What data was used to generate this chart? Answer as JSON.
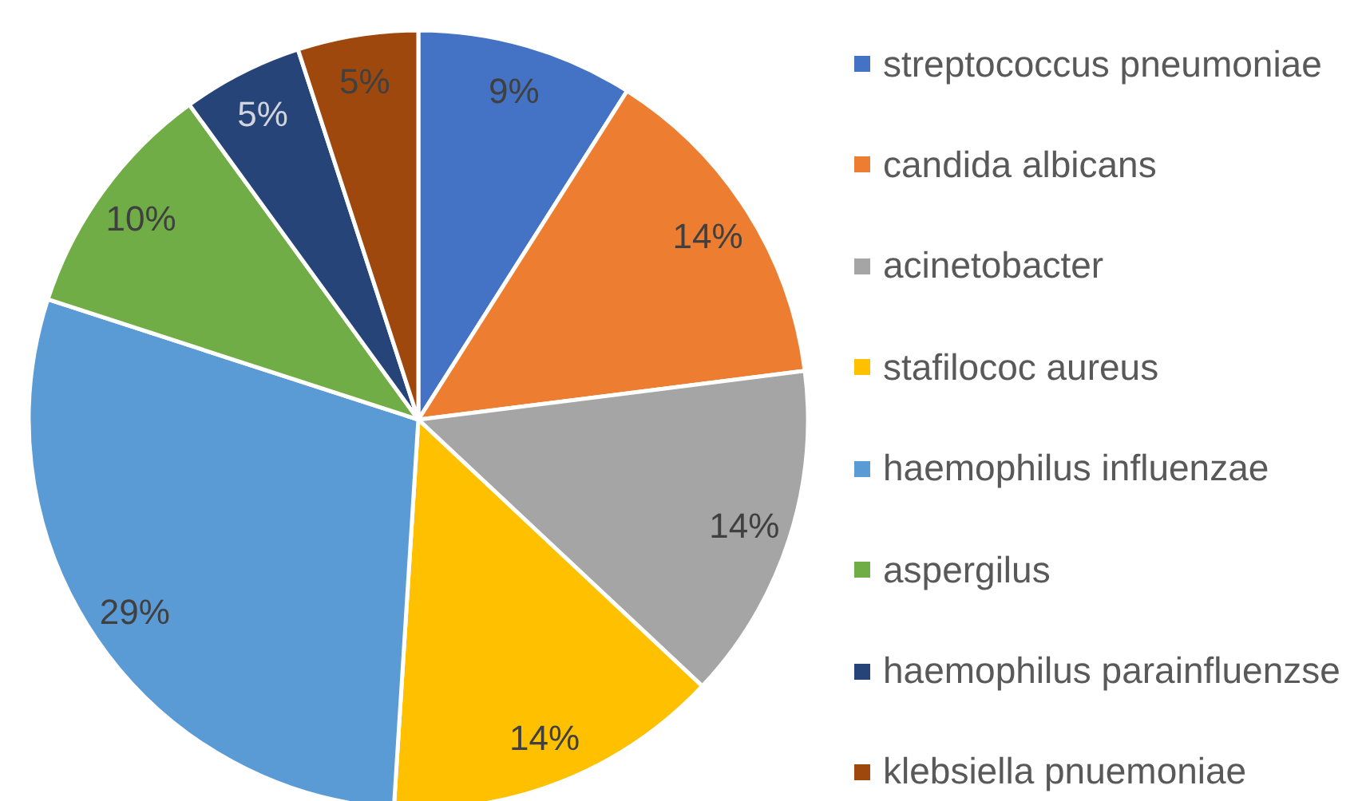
{
  "chart_data": {
    "type": "pie",
    "categories": [
      "streptococcus pneumoniae",
      "candida albicans",
      "acinetobacter",
      "stafilococ aureus",
      "haemophilus influenzae",
      "aspergilus",
      "haemophilus parainfluenzse",
      "klebsiella pnuemoniae"
    ],
    "values": [
      9,
      14,
      14,
      14,
      29,
      10,
      5,
      5
    ],
    "value_labels": [
      "9%",
      "14%",
      "14%",
      "14%",
      "29%",
      "10%",
      "5%",
      "5%"
    ],
    "colors": [
      "#4472c4",
      "#ed7d31",
      "#a5a5a5",
      "#ffc000",
      "#5b9bd5",
      "#70ad47",
      "#264478",
      "#9e480e"
    ],
    "legend": "right"
  }
}
